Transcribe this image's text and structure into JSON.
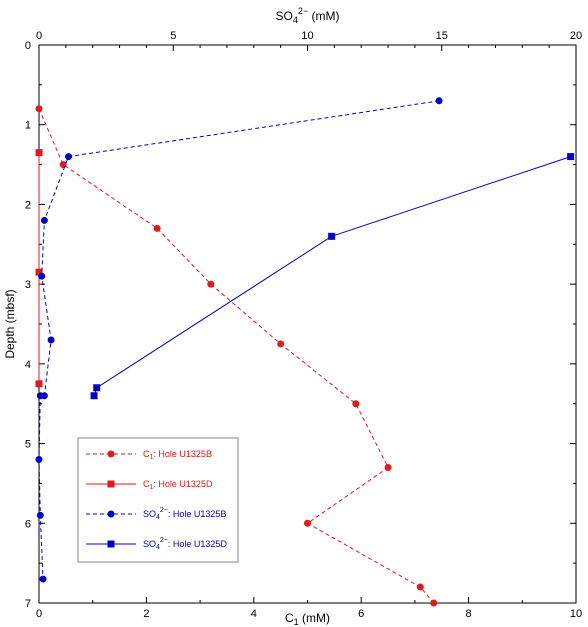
{
  "chart_data": {
    "type": "scatter",
    "y_axis": {
      "label": "Depth (mbsf)",
      "range": [
        0,
        7
      ],
      "inverted": true,
      "ticks": [
        0,
        1,
        2,
        3,
        4,
        5,
        6,
        7
      ]
    },
    "x_bottom": {
      "label": "C1 (mM)",
      "label_main": "C",
      "label_sub": "1",
      "label_tail": " (mM)",
      "range": [
        0,
        10
      ],
      "ticks": [
        0,
        2,
        4,
        6,
        8,
        10
      ]
    },
    "x_top": {
      "label": "SO42− (mM)",
      "label_main": "SO",
      "label_sub": "4",
      "label_sup": "2−",
      "label_tail": " (mM)",
      "range": [
        0,
        20
      ],
      "ticks": [
        0,
        5,
        10,
        15,
        20
      ]
    },
    "grid": false,
    "legend_position": "bottom-left",
    "series": [
      {
        "name": "C1: Hole U1325B",
        "legend": {
          "main": "C",
          "sub": "1",
          "sup": "",
          "tail": ": Hole U1325B"
        },
        "axis": "bottom",
        "color": "#e31a1c",
        "marker": "circle",
        "line": "dashed",
        "points": [
          [
            0.0,
            0.8
          ],
          [
            0.45,
            1.5
          ],
          [
            2.2,
            2.3
          ],
          [
            3.2,
            3.0
          ],
          [
            4.5,
            3.75
          ],
          [
            5.9,
            4.5
          ],
          [
            6.5,
            5.3
          ],
          [
            5.0,
            6.0
          ],
          [
            7.1,
            6.8
          ],
          [
            7.35,
            7.0
          ]
        ]
      },
      {
        "name": "C1: Hole U1325D",
        "legend": {
          "main": "C",
          "sub": "1",
          "sup": "",
          "tail": ": Hole U1325D"
        },
        "axis": "bottom",
        "color": "#e31a1c",
        "marker": "square",
        "line": "solid",
        "points": [
          [
            0.0,
            1.35
          ],
          [
            0.0,
            2.85
          ],
          [
            0.0,
            4.25
          ]
        ]
      },
      {
        "name": "SO42−: Hole U1325B",
        "legend": {
          "main": "SO",
          "sub": "4",
          "sup": "2−",
          "tail": ": Hole U1325B"
        },
        "axis": "top",
        "color": "#0000cc",
        "marker": "circle",
        "line": "dashed",
        "points": [
          [
            14.9,
            0.7
          ],
          [
            1.1,
            1.4
          ],
          [
            0.2,
            2.2
          ],
          [
            0.1,
            2.9
          ],
          [
            0.45,
            3.7
          ],
          [
            0.2,
            4.4
          ],
          [
            0.05,
            4.4
          ],
          [
            0.0,
            5.2
          ],
          [
            0.05,
            5.9
          ],
          [
            0.15,
            6.7
          ]
        ]
      },
      {
        "name": "SO42−: Hole U1325D",
        "legend": {
          "main": "SO",
          "sub": "4",
          "sup": "2−",
          "tail": ": Hole U1325D"
        },
        "axis": "top",
        "color": "#0000cc",
        "marker": "square",
        "line": "solid",
        "points": [
          [
            19.8,
            1.4
          ],
          [
            10.9,
            2.4
          ],
          [
            2.15,
            4.3
          ],
          [
            2.05,
            4.4
          ]
        ]
      }
    ]
  }
}
